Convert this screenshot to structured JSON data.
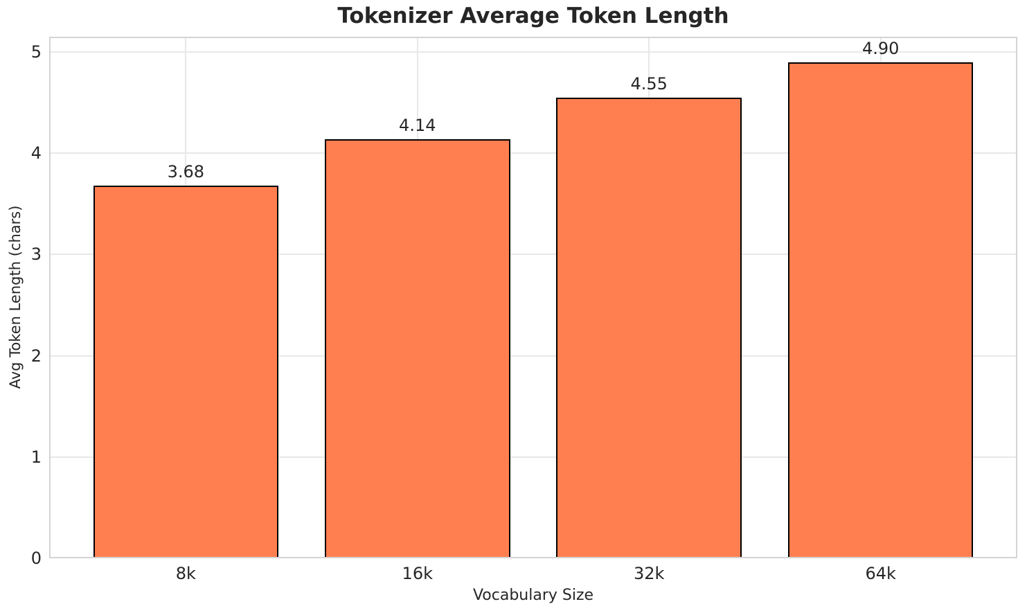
{
  "chart_data": {
    "type": "bar",
    "title": "Tokenizer Average Token Length",
    "xlabel": "Vocabulary Size",
    "ylabel": "Avg Token Length (chars)",
    "categories": [
      "8k",
      "16k",
      "32k",
      "64k"
    ],
    "values": [
      3.68,
      4.14,
      4.55,
      4.9
    ],
    "value_labels": [
      "3.68",
      "4.14",
      "4.55",
      "4.90"
    ],
    "yticks": [
      0,
      1,
      2,
      3,
      4,
      5
    ],
    "ytick_labels": [
      "0",
      "1",
      "2",
      "3",
      "4",
      "5"
    ],
    "ylim": [
      0,
      5.15
    ],
    "xlim": [
      -0.59,
      3.59
    ],
    "bar_width_frac": 0.8,
    "grid": true,
    "legend": "none",
    "colors": {
      "bar_fill": "#FF7F50",
      "bar_edge": "#000000",
      "grid_line": "#e8e8e8",
      "spine": "#d4d4d4",
      "text": "#262626",
      "background": "#ffffff"
    }
  }
}
